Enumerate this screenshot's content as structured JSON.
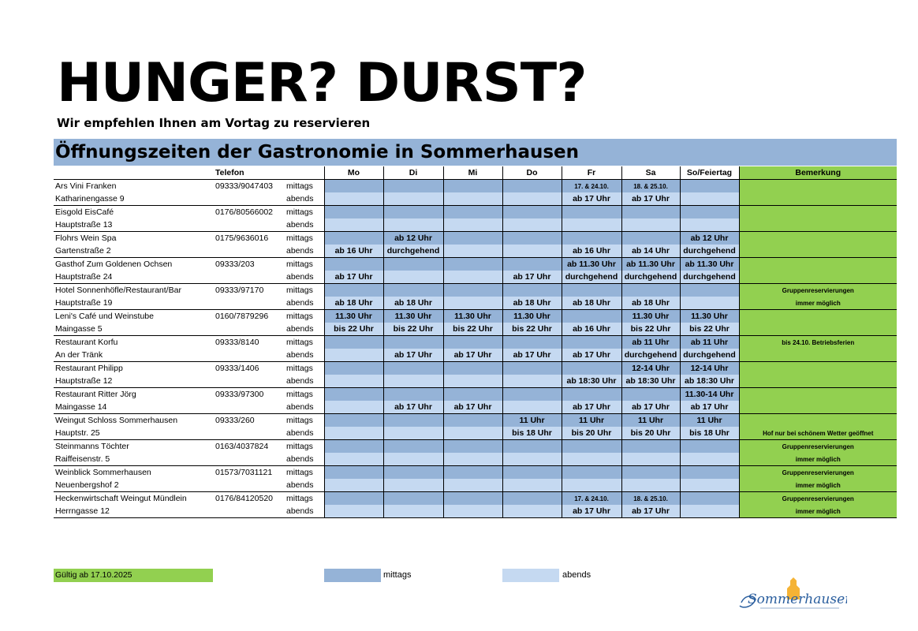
{
  "headline": "HUNGER? DURST?",
  "subline": "Wir empfehlen Ihnen am Vortag zu reservieren",
  "section_title": "Öffnungszeiten der Gastronomie in Sommerhausen",
  "columns": [
    "Telefon",
    "Mo",
    "Di",
    "Mi",
    "Do",
    "Fr",
    "Sa",
    "So/Feiertag",
    "Bemerkung"
  ],
  "slot_labels": {
    "mittags": "mittags",
    "abends": "abends"
  },
  "restaurants": [
    {
      "name": "Ars Vini Franken",
      "address": "Katharinengasse 9",
      "phone": "09333/9047403",
      "mittags": [
        "",
        "",
        "",
        "",
        "17. & 24.10.",
        "18. & 25.10.",
        ""
      ],
      "abends": [
        "",
        "",
        "",
        "",
        "ab 17 Uhr",
        "ab 17 Uhr",
        ""
      ],
      "note1": "",
      "note2": ""
    },
    {
      "name": "Eisgold EisCafé",
      "address": "Hauptstraße 13",
      "phone": "0176/80566002",
      "mittags": [
        "",
        "",
        "",
        "",
        "",
        "",
        ""
      ],
      "abends": [
        "",
        "",
        "",
        "",
        "",
        "",
        ""
      ],
      "note1": "",
      "note2": ""
    },
    {
      "name": "Flohrs Wein Spa",
      "address": "Gartenstraße 2",
      "phone": "0175/9636016",
      "mittags": [
        "",
        "ab 12 Uhr",
        "",
        "",
        "",
        "",
        "ab 12 Uhr"
      ],
      "abends": [
        "ab 16 Uhr",
        "durchgehend",
        "",
        "",
        "ab 16 Uhr",
        "ab 14 Uhr",
        "durchgehend"
      ],
      "note1": "",
      "note2": ""
    },
    {
      "name": "Gasthof Zum Goldenen Ochsen",
      "address": "Hauptstraße 24",
      "phone": "09333/203",
      "mittags": [
        "",
        "",
        "",
        "",
        "ab 11.30 Uhr",
        "ab 11.30 Uhr",
        "ab 11.30 Uhr"
      ],
      "abends": [
        "ab 17 Uhr",
        "",
        "",
        "ab 17 Uhr",
        "durchgehend",
        "durchgehend",
        "durchgehend"
      ],
      "note1": "",
      "note2": ""
    },
    {
      "name": "Hotel Sonnenhöfle/Restaurant/Bar",
      "address": "Hauptstraße 19",
      "phone": "09333/97170",
      "mittags": [
        "",
        "",
        "",
        "",
        "",
        "",
        ""
      ],
      "abends": [
        "ab 18 Uhr",
        "ab 18 Uhr",
        "",
        "ab 18 Uhr",
        "ab 18 Uhr",
        "ab 18 Uhr",
        ""
      ],
      "note1": "Gruppenreservierungen",
      "note2": "immer möglich"
    },
    {
      "name": "Leni's Café und Weinstube",
      "address": "Maingasse 5",
      "phone": "0160/7879296",
      "mittags": [
        "11.30 Uhr",
        "11.30 Uhr",
        "11.30 Uhr",
        "11.30 Uhr",
        "",
        "11.30 Uhr",
        "11.30 Uhr"
      ],
      "abends": [
        "bis 22 Uhr",
        "bis 22 Uhr",
        "bis 22 Uhr",
        "bis 22 Uhr",
        "ab 16 Uhr",
        "bis 22 Uhr",
        "bis 22 Uhr"
      ],
      "note1": "",
      "note2": ""
    },
    {
      "name": "Restaurant Korfu",
      "address": "An der Tränk",
      "phone": "09333/8140",
      "mittags": [
        "",
        "",
        "",
        "",
        "",
        "ab 11 Uhr",
        "ab 11 Uhr"
      ],
      "abends": [
        "",
        "ab 17 Uhr",
        "ab 17 Uhr",
        "ab 17 Uhr",
        "ab 17 Uhr",
        "durchgehend",
        "durchgehend"
      ],
      "note1": "bis 24.10. Betriebsferien",
      "note2": ""
    },
    {
      "name": "Restaurant Philipp",
      "address": "Hauptstraße 12",
      "phone": "09333/1406",
      "mittags": [
        "",
        "",
        "",
        "",
        "",
        "12-14 Uhr",
        "12-14 Uhr"
      ],
      "abends": [
        "",
        "",
        "",
        "",
        "ab 18:30 Uhr",
        "ab 18:30 Uhr",
        "ab 18:30 Uhr"
      ],
      "note1": "",
      "note2": ""
    },
    {
      "name": "Restaurant Ritter Jörg",
      "address": "Maingasse 14",
      "phone": "09333/97300",
      "mittags": [
        "",
        "",
        "",
        "",
        "",
        "",
        "11.30-14 Uhr"
      ],
      "abends": [
        "",
        "ab 17 Uhr",
        "ab 17 Uhr",
        "",
        "ab 17 Uhr",
        "ab 17 Uhr",
        "ab 17 Uhr"
      ],
      "note1": "",
      "note2": ""
    },
    {
      "name": "Weingut Schloss Sommerhausen",
      "address": "Hauptstr. 25",
      "phone": "09333/260",
      "mittags": [
        "",
        "",
        "",
        "11 Uhr",
        "11 Uhr",
        "11 Uhr",
        "11 Uhr"
      ],
      "abends": [
        "",
        "",
        "",
        "bis 18 Uhr",
        "bis 20 Uhr",
        "bis 20 Uhr",
        "bis 18 Uhr"
      ],
      "note1": "",
      "note2": "Hof nur bei schönem Wetter geöffnet"
    },
    {
      "name": "Steinmanns Töchter",
      "address": "Raiffeisenstr. 5",
      "phone": "0163/4037824",
      "mittags": [
        "",
        "",
        "",
        "",
        "",
        "",
        ""
      ],
      "abends": [
        "",
        "",
        "",
        "",
        "",
        "",
        ""
      ],
      "note1": "Gruppenreservierungen",
      "note2": "immer möglich"
    },
    {
      "name": "Weinblick Sommerhausen",
      "address": "Neuenbergshof 2",
      "phone": "01573/7031121",
      "mittags": [
        "",
        "",
        "",
        "",
        "",
        "",
        ""
      ],
      "abends": [
        "",
        "",
        "",
        "",
        "",
        "",
        ""
      ],
      "note1": "Gruppenreservierungen",
      "note2": "immer möglich"
    },
    {
      "name": "Heckenwirtschaft Weingut Mündlein",
      "address": "Herrngasse 12",
      "phone": "0176/84120520",
      "mittags": [
        "",
        "",
        "",
        "",
        "17. & 24.10.",
        "18. & 25.10.",
        ""
      ],
      "abends": [
        "",
        "",
        "",
        "",
        "ab 17 Uhr",
        "ab 17 Uhr",
        ""
      ],
      "note1": "Gruppenreservierungen",
      "note2": "immer möglich"
    }
  ],
  "legend": {
    "valid": "Gültig ab 17.10.2025",
    "mittags": "mittags",
    "abends": "abends"
  },
  "logo_text": "Sommerhausen",
  "colors": {
    "mittags": "#95b3d7",
    "abends": "#c5d9f1",
    "note": "#92d050",
    "title_bar": "#95b3d7"
  }
}
